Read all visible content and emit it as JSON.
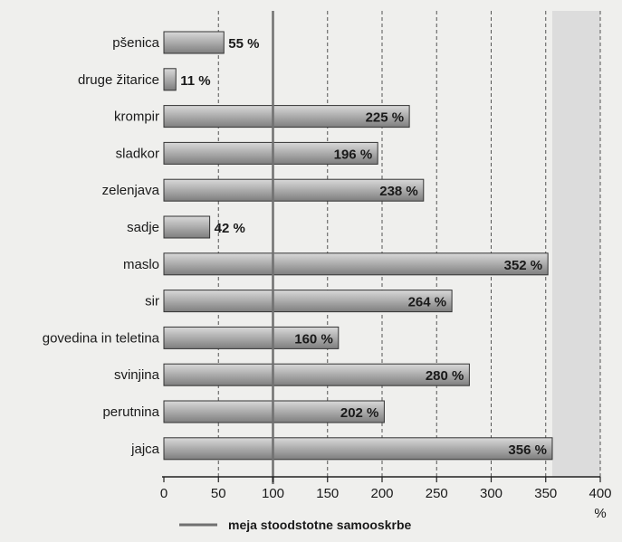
{
  "chart_data": {
    "type": "bar",
    "orientation": "horizontal",
    "categories": [
      "pšenica",
      "druge žitarice",
      "krompir",
      "sladkor",
      "zelenjava",
      "sadje",
      "maslo",
      "sir",
      "govedina in teletina",
      "svinjina",
      "perutnina",
      "jajca"
    ],
    "values": [
      55,
      11,
      225,
      196,
      238,
      42,
      352,
      264,
      160,
      280,
      202,
      356
    ],
    "value_labels": [
      "55 %",
      "11 %",
      "225 %",
      "196 %",
      "238 %",
      "42 %",
      "352 %",
      "264 %",
      "160 %",
      "280 %",
      "202 %",
      "356 %"
    ],
    "x_ticks": [
      "0",
      "50",
      "100",
      "150",
      "200",
      "250",
      "300",
      "350",
      "400"
    ],
    "xlabel": "%",
    "xlim": [
      0,
      400
    ],
    "reference_line": {
      "value": 100,
      "label": "meja stoodstotne samooskrbe"
    },
    "grid": "vertical dashed",
    "legend_position": "bottom",
    "colors": {
      "bar": "#a9a9a9",
      "bar_edge": "#333333",
      "background": "#efefed",
      "shade": "#dcdcdc",
      "reference": "#707070"
    }
  }
}
